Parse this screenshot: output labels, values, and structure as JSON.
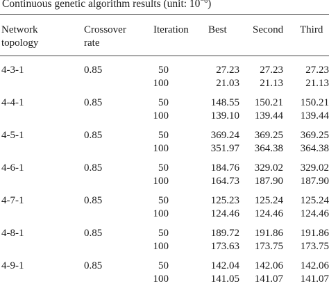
{
  "caption": {
    "text": "Continuous genetic algorithm results (unit: 10",
    "exp": "−6",
    "close": ")"
  },
  "headers": {
    "topology_l1": "Network",
    "topology_l2": "topology",
    "crossover_l1": "Crossover",
    "crossover_l2": "rate",
    "iteration": "Iteration",
    "best": "Best",
    "second": "Second",
    "third": "Third"
  },
  "rows": [
    {
      "topology": "4-3-1",
      "rate": "0.85",
      "r1": {
        "iteration": "50",
        "best": "27.23",
        "second": "27.23",
        "third": "27.23"
      },
      "r2": {
        "iteration": "100",
        "best": "21.03",
        "second": "21.13",
        "third": "21.13"
      }
    },
    {
      "topology": "4-4-1",
      "rate": "0.85",
      "r1": {
        "iteration": "50",
        "best": "148.55",
        "second": "150.21",
        "third": "150.21"
      },
      "r2": {
        "iteration": "100",
        "best": "139.10",
        "second": "139.44",
        "third": "139.44"
      }
    },
    {
      "topology": "4-5-1",
      "rate": "0.85",
      "r1": {
        "iteration": "50",
        "best": "369.24",
        "second": "369.25",
        "third": "369.25"
      },
      "r2": {
        "iteration": "100",
        "best": "351.97",
        "second": "364.38",
        "third": "364.38"
      }
    },
    {
      "topology": "4-6-1",
      "rate": "0.85",
      "r1": {
        "iteration": "50",
        "best": "184.76",
        "second": "329.02",
        "third": "329.02"
      },
      "r2": {
        "iteration": "100",
        "best": "164.73",
        "second": "187.90",
        "third": "187.90"
      }
    },
    {
      "topology": "4-7-1",
      "rate": "0.85",
      "r1": {
        "iteration": "50",
        "best": "125.23",
        "second": "125.24",
        "third": "125.24"
      },
      "r2": {
        "iteration": "100",
        "best": "124.46",
        "second": "124.46",
        "third": "124.46"
      }
    },
    {
      "topology": "4-8-1",
      "rate": "0.85",
      "r1": {
        "iteration": "50",
        "best": "189.72",
        "second": "191.86",
        "third": "191.86"
      },
      "r2": {
        "iteration": "100",
        "best": "173.63",
        "second": "173.75",
        "third": "173.75"
      }
    },
    {
      "topology": "4-9-1",
      "rate": "0.85",
      "r1": {
        "iteration": "50",
        "best": "142.04",
        "second": "142.06",
        "third": "142.06"
      },
      "r2": {
        "iteration": "100",
        "best": "141.05",
        "second": "141.07",
        "third": "141.07"
      }
    }
  ]
}
